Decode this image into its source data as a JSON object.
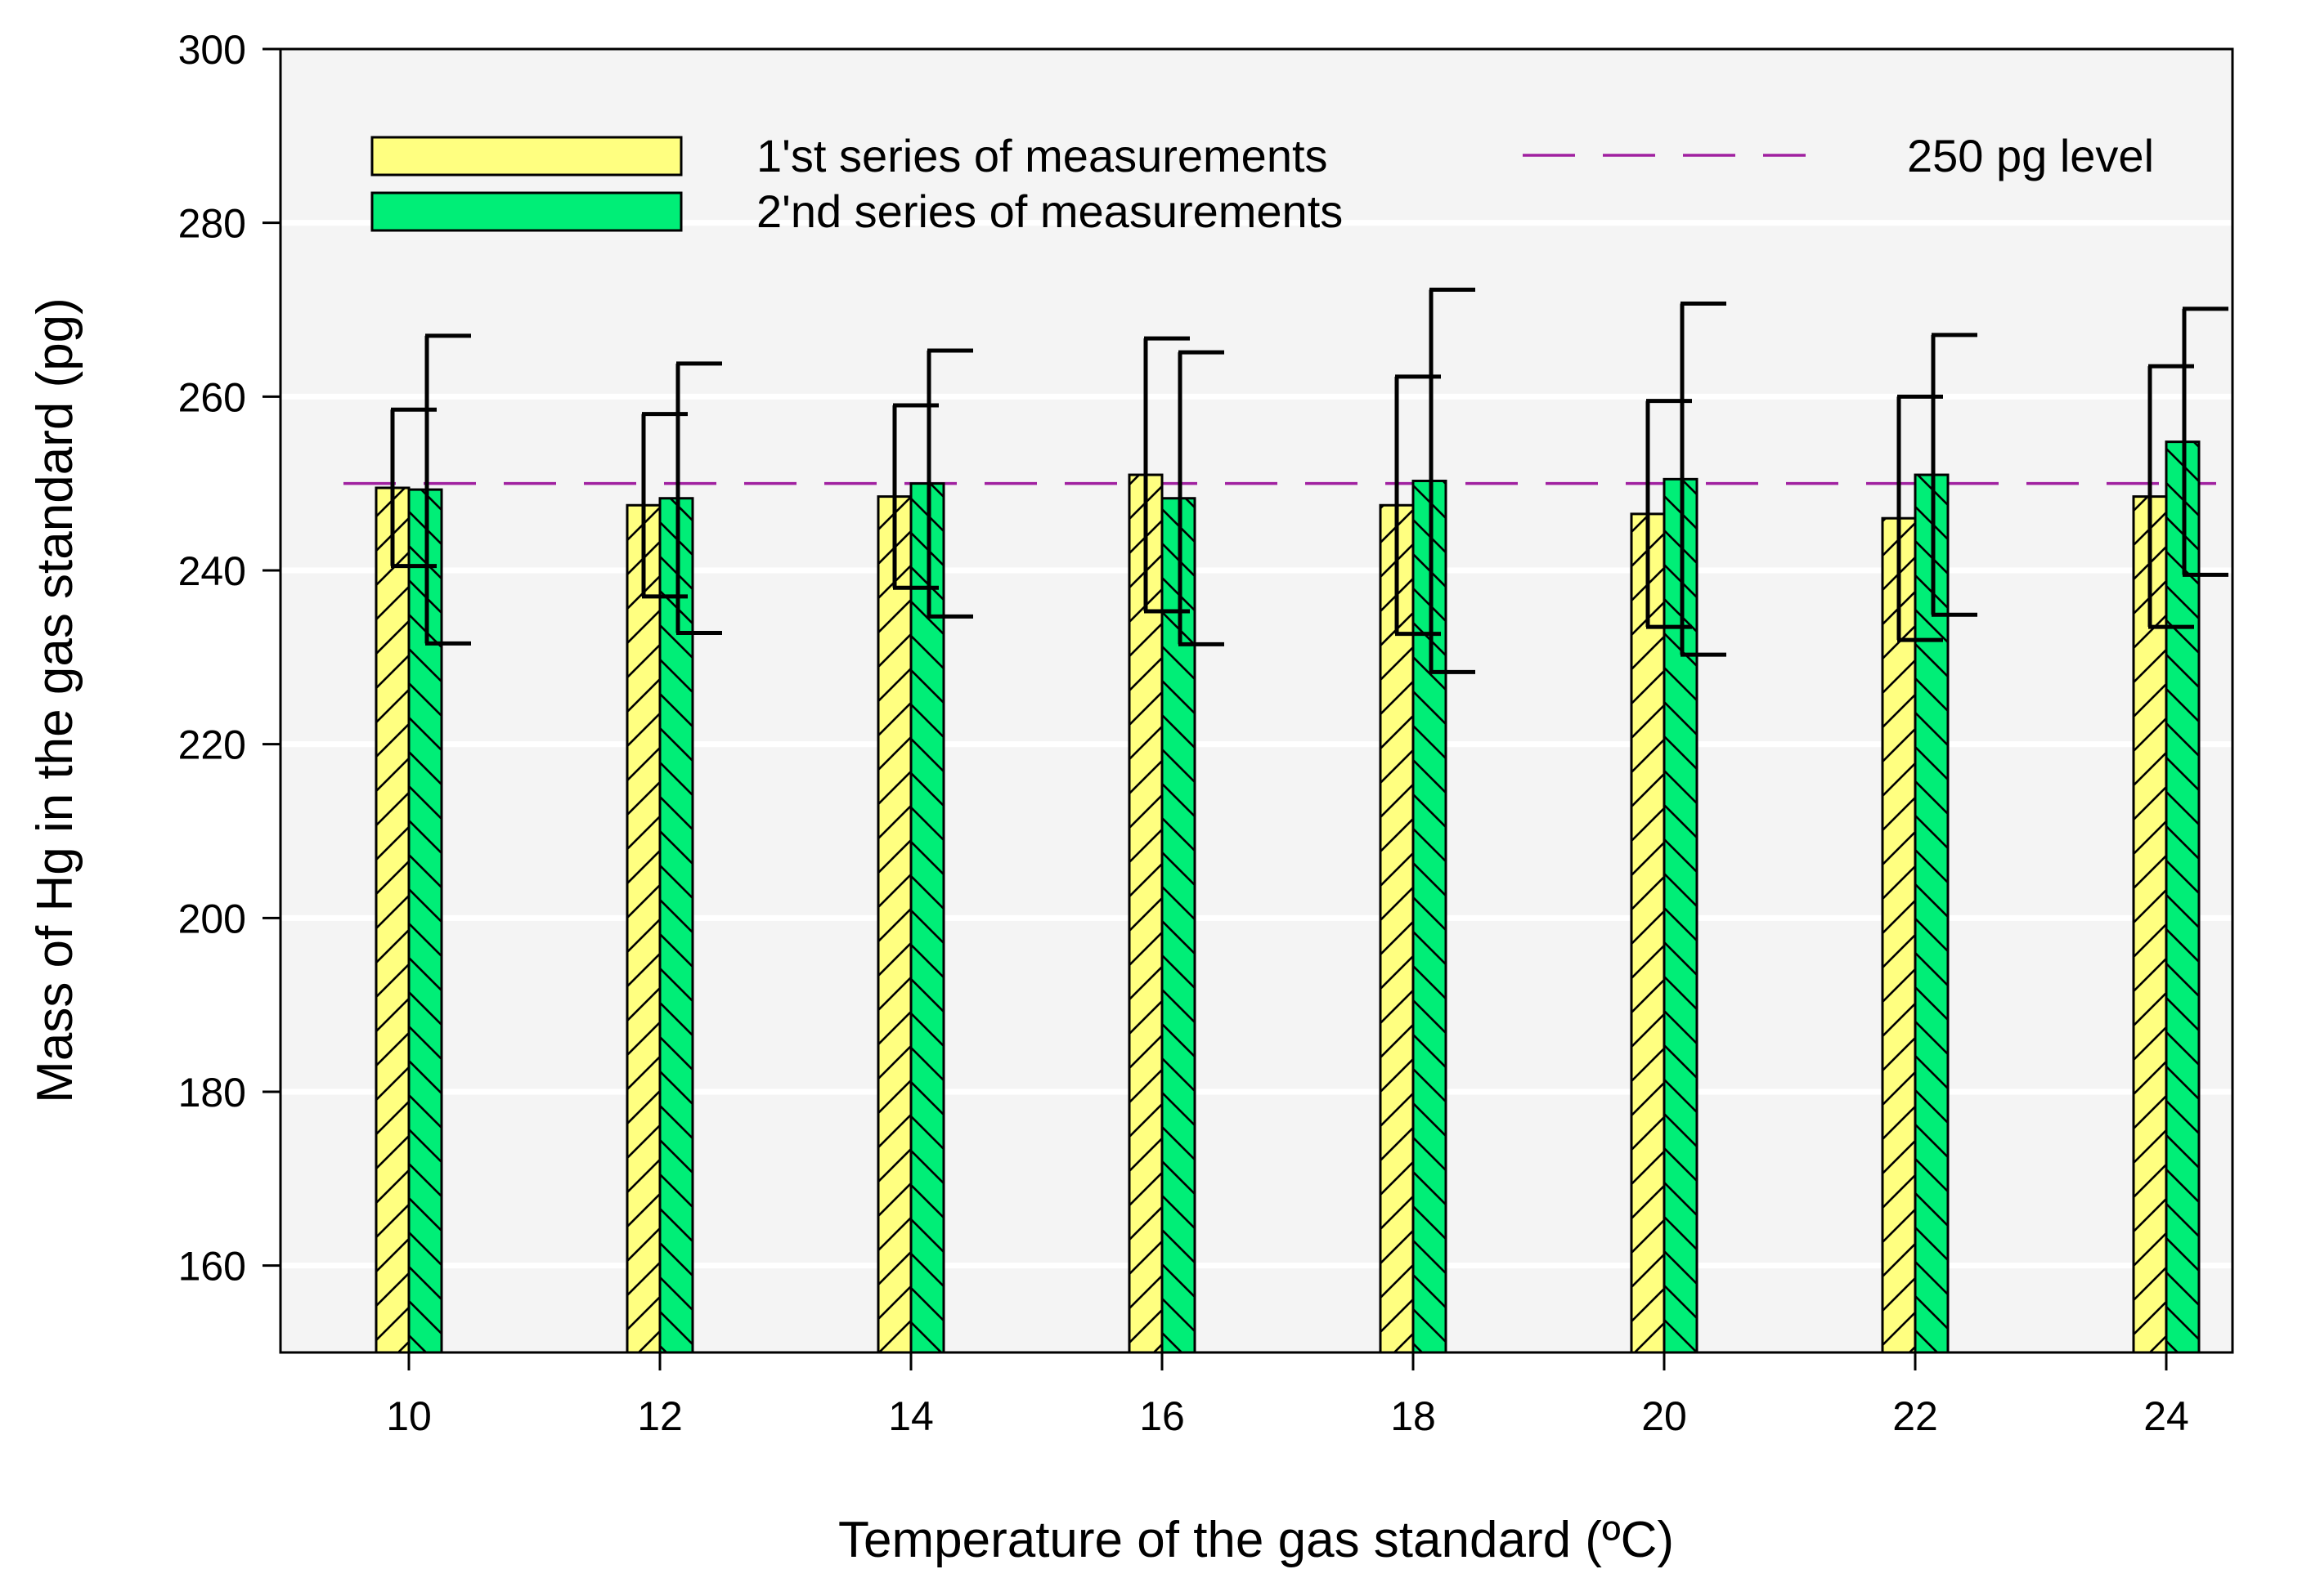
{
  "chart_data": {
    "type": "bar",
    "xlabel": "Temperature of the gas standard (ºC)",
    "ylabel": "Mass of Hg in the gas standard (pg)",
    "categories": [
      "10",
      "12",
      "14",
      "16",
      "18",
      "20",
      "22",
      "24"
    ],
    "ylim": [
      150,
      300
    ],
    "yticks": [
      160,
      180,
      200,
      220,
      240,
      260,
      280,
      300
    ],
    "grid": "horizontal",
    "legend_position": "top",
    "background": "#f4f4f4",
    "series": [
      {
        "name": "1'st series of measurements",
        "color": "#ffff80",
        "hatch": "forward",
        "values": [
          249.5,
          247.5,
          248.5,
          251,
          247.5,
          246.5,
          246,
          248.5
        ],
        "error": [
          9,
          10.5,
          10.5,
          15.7,
          14.8,
          13,
          14,
          15
        ]
      },
      {
        "name": "2'nd series of measurements",
        "color": "#00ee77",
        "hatch": "backward",
        "values": [
          249.3,
          248.3,
          250,
          248.3,
          250.3,
          250.5,
          251,
          254.8
        ],
        "error": [
          17.7,
          15.5,
          15.3,
          16.8,
          22,
          20.2,
          16.1,
          15.3
        ]
      }
    ],
    "reference_line": {
      "name": "250 pg level",
      "value": 250,
      "color": "#a020a0",
      "style": "dashed"
    }
  }
}
